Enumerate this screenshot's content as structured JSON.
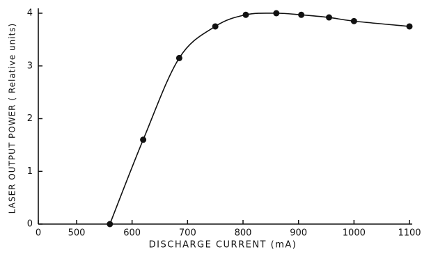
{
  "chart_data": {
    "type": "scatter",
    "xlabel": "DISCHARGE CURRENT (mA)",
    "ylabel": "LASER OUTPUT POWER ( Relative units)",
    "x": [
      560,
      620,
      685,
      750,
      805,
      860,
      905,
      955,
      1000,
      1100
    ],
    "series": [
      {
        "color": "#111111",
        "values": [
          0,
          1.6,
          3.15,
          3.75,
          3.97,
          4.0,
          3.97,
          3.92,
          3.85,
          3.75
        ]
      }
    ],
    "xlim": [
      0,
      1100
    ],
    "xticks": [
      0,
      500,
      600,
      700,
      800,
      900,
      1000,
      1100
    ],
    "ylim": [
      0,
      4
    ],
    "yticks": [
      0,
      1,
      2,
      3,
      4
    ]
  }
}
